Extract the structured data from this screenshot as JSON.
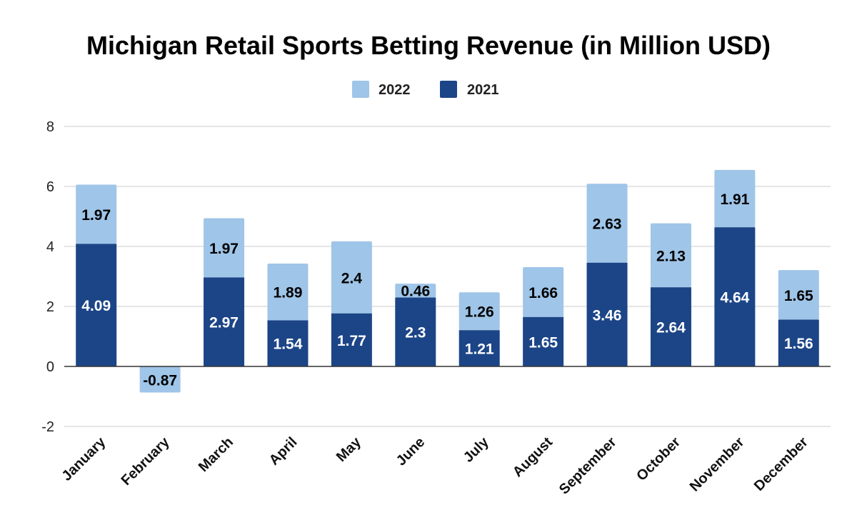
{
  "chart_data": {
    "type": "bar",
    "stacked": true,
    "title": "Michigan Retail Sports Betting Revenue (in Million USD)",
    "xlabel": "",
    "ylabel": "",
    "ylim": [
      -2,
      8
    ],
    "yticks": [
      -2,
      0,
      2,
      4,
      6,
      8
    ],
    "grid": true,
    "legend_position": "top-center",
    "categories": [
      "January",
      "February",
      "March",
      "April",
      "May",
      "June",
      "July",
      "August",
      "September",
      "October",
      "November",
      "December"
    ],
    "series": [
      {
        "name": "2021",
        "color": "#1c4587",
        "values": [
          4.09,
          null,
          2.97,
          1.54,
          1.77,
          2.3,
          1.21,
          1.65,
          3.46,
          2.64,
          4.64,
          1.56
        ],
        "labels": [
          "4.09",
          "",
          "2.97",
          "1.54",
          "1.77",
          "2.3",
          "1.21",
          "1.65",
          "3.46",
          "2.64",
          "4.64",
          "1.56"
        ]
      },
      {
        "name": "2022",
        "color": "#9fc5e8",
        "values": [
          1.97,
          -0.87,
          1.97,
          1.89,
          2.4,
          0.46,
          1.26,
          1.66,
          2.63,
          2.13,
          1.91,
          1.65
        ],
        "labels": [
          "1.97",
          "-0.87",
          "1.97",
          "1.89",
          "2.4",
          "0.46",
          "1.26",
          "1.66",
          "2.63",
          "2.13",
          "1.91",
          "1.65"
        ]
      }
    ],
    "legend": [
      "2022",
      "2021"
    ]
  }
}
